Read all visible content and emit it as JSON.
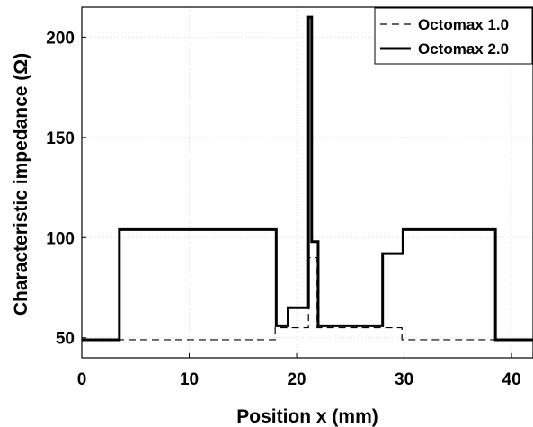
{
  "chart_data": {
    "type": "line",
    "title": "",
    "xlabel": "Position x (mm)",
    "ylabel": "Characteristic impedance (Ω)",
    "xlim": [
      0,
      42
    ],
    "ylim": [
      40,
      215
    ],
    "xticks": [
      0,
      10,
      20,
      30,
      40
    ],
    "yticks": [
      50,
      100,
      150,
      200
    ],
    "grid": true,
    "legend_position": "top-right",
    "series": [
      {
        "name": "Octomax 1.0",
        "style": "dashed",
        "color": "#000000",
        "step_points": [
          [
            0,
            49
          ],
          [
            18,
            49
          ],
          [
            18,
            55
          ],
          [
            21.1,
            55
          ],
          [
            21.1,
            90
          ],
          [
            21.9,
            90
          ],
          [
            21.9,
            55
          ],
          [
            29.8,
            55
          ],
          [
            29.8,
            49
          ],
          [
            42,
            49
          ]
        ]
      },
      {
        "name": "Octomax 2.0",
        "style": "solid",
        "color": "#000000",
        "step_points": [
          [
            0,
            49
          ],
          [
            3.5,
            49
          ],
          [
            3.5,
            104
          ],
          [
            18.1,
            104
          ],
          [
            18.1,
            56
          ],
          [
            19.2,
            56
          ],
          [
            19.2,
            65
          ],
          [
            21.1,
            65
          ],
          [
            21.1,
            210
          ],
          [
            21.4,
            210
          ],
          [
            21.4,
            98
          ],
          [
            22.0,
            98
          ],
          [
            22.0,
            56
          ],
          [
            28.0,
            56
          ],
          [
            28.0,
            92
          ],
          [
            29.9,
            92
          ],
          [
            29.9,
            104
          ],
          [
            38.5,
            104
          ],
          [
            38.5,
            49
          ],
          [
            42,
            49
          ]
        ]
      }
    ]
  }
}
